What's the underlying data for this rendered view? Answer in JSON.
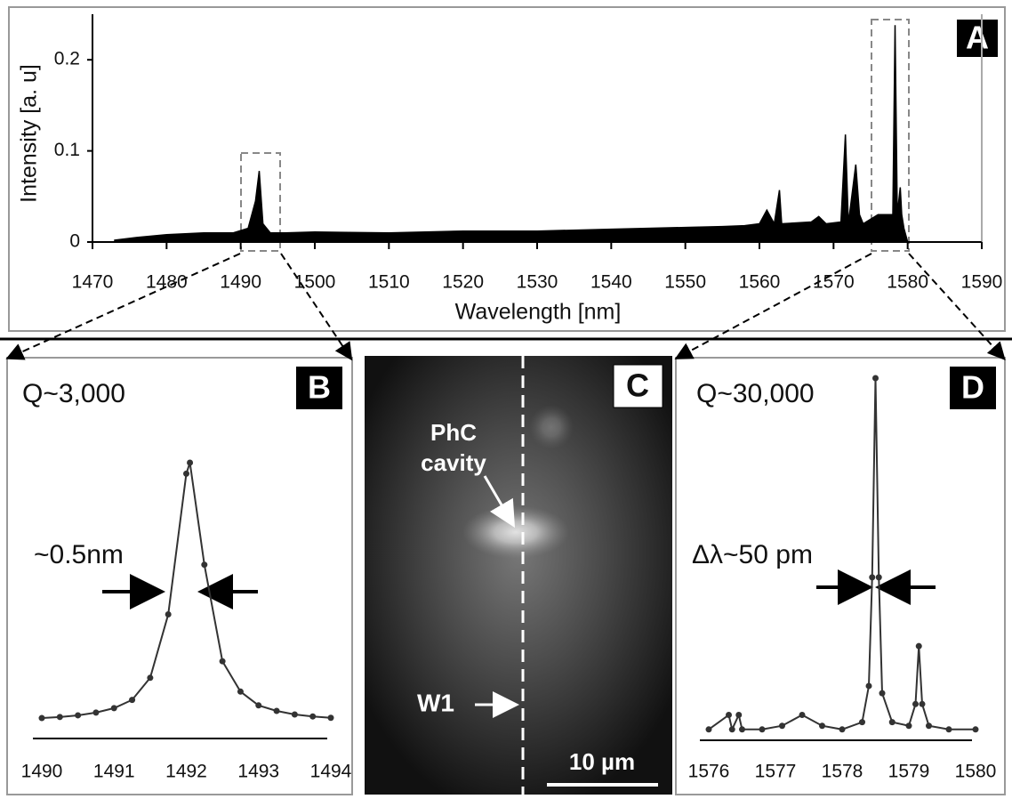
{
  "chart_data": [
    {
      "type": "area",
      "label": "A",
      "x_label": "Wavelength [nm]",
      "y_label": "Intensity [a. u]",
      "color": "#000000",
      "x": [
        1473,
        1476,
        1480,
        1485,
        1489,
        1491,
        1492,
        1492.5,
        1493,
        1494,
        1496,
        1500,
        1510,
        1520,
        1530,
        1540,
        1550,
        1555,
        1558,
        1560,
        1561,
        1562,
        1562.7,
        1563,
        1565,
        1567,
        1568,
        1569,
        1571,
        1571.6,
        1572,
        1573,
        1573.5,
        1574,
        1575,
        1576,
        1577,
        1578,
        1578.3,
        1578.6,
        1579,
        1579.2,
        1579.5,
        1580,
        1581,
        1590
      ],
      "values": [
        0.002,
        0.005,
        0.008,
        0.01,
        0.01,
        0.015,
        0.045,
        0.078,
        0.02,
        0.01,
        0.01,
        0.011,
        0.01,
        0.012,
        0.012,
        0.014,
        0.016,
        0.017,
        0.018,
        0.02,
        0.035,
        0.02,
        0.057,
        0.02,
        0.021,
        0.022,
        0.028,
        0.02,
        0.022,
        0.118,
        0.02,
        0.085,
        0.03,
        0.02,
        0.025,
        0.03,
        0.03,
        0.03,
        0.238,
        0.03,
        0.06,
        0.03,
        0.015,
        0,
        0,
        0
      ],
      "xlim": [
        1470,
        1590
      ],
      "xticks": [
        1470,
        1480,
        1490,
        1500,
        1510,
        1520,
        1530,
        1540,
        1550,
        1560,
        1570,
        1580,
        1590
      ],
      "ylim": [
        0,
        0.25
      ],
      "yticks": [
        0,
        0.1,
        0.2
      ]
    },
    {
      "type": "line",
      "label": "B",
      "annotations": [
        "Q~3,000",
        "~0.5nm"
      ],
      "color": "#333333",
      "x": [
        1490,
        1490.25,
        1490.5,
        1490.75,
        1491,
        1491.25,
        1491.5,
        1491.75,
        1492,
        1492.05,
        1492.25,
        1492.5,
        1492.75,
        1493,
        1493.25,
        1493.5,
        1493.75,
        1494
      ],
      "values": [
        0.074,
        0.078,
        0.084,
        0.094,
        0.11,
        0.14,
        0.22,
        0.45,
        0.96,
        1,
        0.63,
        0.28,
        0.17,
        0.12,
        0.1,
        0.087,
        0.08,
        0.075
      ],
      "xlim": [
        1490,
        1494
      ],
      "xticks": [
        1490,
        1491,
        1492,
        1493,
        1494
      ],
      "ylim": [
        0,
        1
      ]
    },
    {
      "type": "image",
      "label": "C",
      "annotations": [
        "PhC",
        "cavity",
        "W1"
      ],
      "scale_bar": "10 µm"
    },
    {
      "type": "line",
      "label": "D",
      "annotations": [
        "Q~30,000",
        "Δλ~50 pm"
      ],
      "color": "#333333",
      "x": [
        1576,
        1576.3,
        1576.35,
        1576.45,
        1576.5,
        1576.8,
        1577.1,
        1577.4,
        1577.7,
        1578,
        1578.3,
        1578.4,
        1578.45,
        1578.5,
        1578.55,
        1578.6,
        1578.75,
        1579,
        1579.1,
        1579.15,
        1579.2,
        1579.3,
        1579.6,
        1580
      ],
      "values": [
        0.03,
        0.07,
        0.03,
        0.07,
        0.03,
        0.03,
        0.04,
        0.07,
        0.04,
        0.03,
        0.05,
        0.15,
        0.45,
        1,
        0.45,
        0.13,
        0.05,
        0.04,
        0.1,
        0.26,
        0.1,
        0.04,
        0.03,
        0.03
      ],
      "xlim": [
        1576,
        1580
      ],
      "xticks": [
        1576,
        1577,
        1578,
        1579,
        1580
      ],
      "ylim": [
        0,
        1
      ]
    }
  ]
}
